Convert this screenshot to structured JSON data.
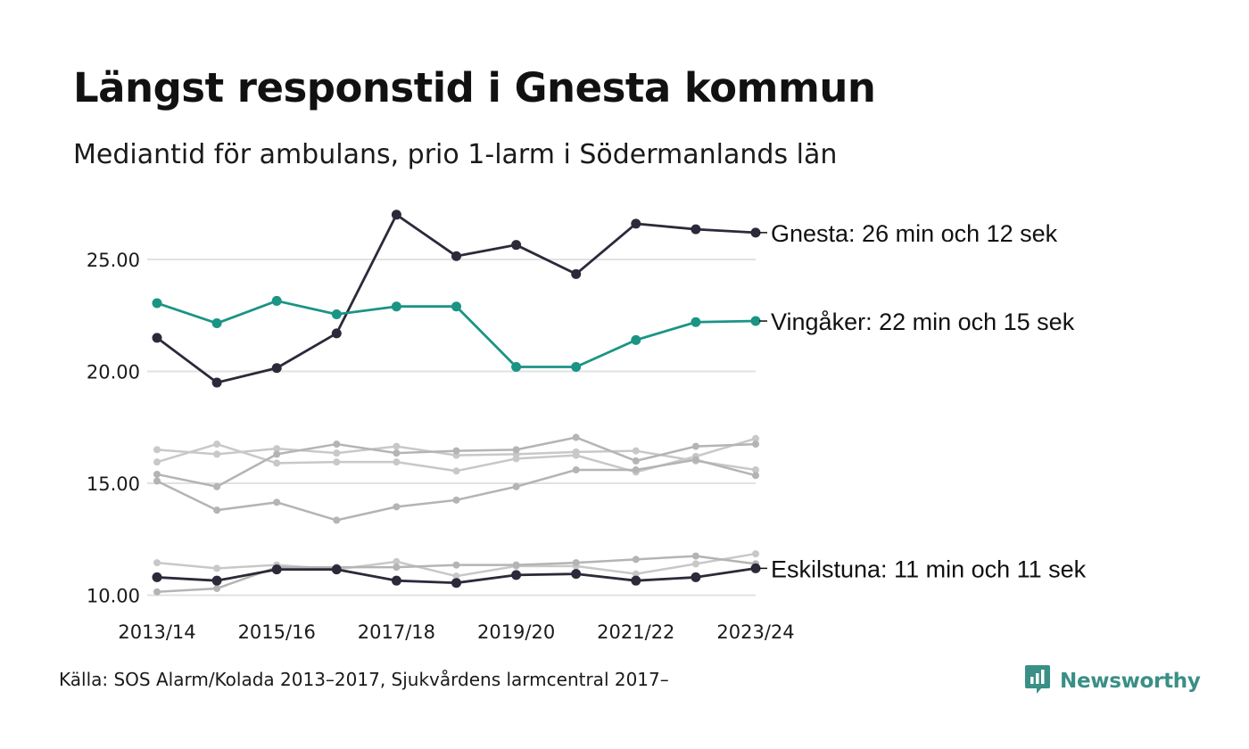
{
  "header": {
    "title": "Längst responstid i Gnesta kommun",
    "subtitle": "Mediantid för ambulans, prio 1-larm i Södermanlands län"
  },
  "footer": {
    "source": "Källa: SOS Alarm/Kolada 2013–2017, Sjukvårdens larmcentral 2017–",
    "brand": "Newsworthy",
    "brand_icon": "bar-chart-chat-icon",
    "brand_color": "#3a8f86"
  },
  "chart_data": {
    "type": "line",
    "title": "Längst responstid i Gnesta kommun",
    "subtitle": "Mediantid för ambulans, prio 1-larm i Södermanlands län",
    "xlabel": "",
    "ylabel": "",
    "x": [
      "2013/14",
      "2014/15",
      "2015/16",
      "2016/17",
      "2017/18",
      "2018/19",
      "2019/20",
      "2020/21",
      "2021/22",
      "2022/23",
      "2023/24"
    ],
    "x_tick_labels": [
      "2013/14",
      "2015/16",
      "2017/18",
      "2019/20",
      "2021/22",
      "2023/24"
    ],
    "y_tick_labels": [
      "10.00",
      "15.00",
      "20.00",
      "25.00"
    ],
    "y_ticks": [
      10,
      15,
      20,
      25
    ],
    "ylim": [
      9.9,
      27.5
    ],
    "grid": "horizontal",
    "legend": "none (direct labels at line ends)",
    "highlight_series": [
      {
        "label": "Gnesta: 26 min och 12 sek",
        "color": "#2b2a3a",
        "values": [
          21.5,
          19.5,
          20.15,
          21.7,
          27.0,
          25.15,
          25.65,
          24.35,
          26.6,
          26.35,
          26.2
        ]
      },
      {
        "label": "Vingåker: 22 min och 15 sek",
        "color": "#1a9485",
        "values": [
          23.05,
          22.15,
          23.15,
          22.55,
          22.9,
          22.9,
          20.2,
          20.2,
          21.4,
          22.2,
          22.25
        ]
      },
      {
        "label": "Eskilstuna: 11 min och 11 sek",
        "color": "#2b2a3a",
        "values": [
          10.8,
          10.65,
          11.15,
          11.15,
          10.65,
          10.55,
          10.9,
          10.95,
          10.65,
          10.8,
          11.2
        ]
      }
    ],
    "background_series": [
      {
        "color": "#c8c8c8",
        "values": [
          16.5,
          16.3,
          16.55,
          16.35,
          16.65,
          16.25,
          16.3,
          16.4,
          16.45,
          16.0,
          15.6
        ]
      },
      {
        "color": "#c8c8c8",
        "values": [
          15.95,
          16.75,
          15.9,
          15.95,
          15.95,
          15.55,
          16.1,
          16.25,
          15.5,
          16.2,
          17.0
        ]
      },
      {
        "color": "#b4b4b4",
        "values": [
          15.4,
          14.85,
          16.3,
          16.75,
          16.35,
          16.45,
          16.5,
          17.05,
          16.0,
          16.65,
          16.75
        ]
      },
      {
        "color": "#b4b4b4",
        "values": [
          15.1,
          13.8,
          14.15,
          13.35,
          13.95,
          14.25,
          14.85,
          15.6,
          15.6,
          16.05,
          15.35
        ]
      },
      {
        "color": "#c8c8c8",
        "values": [
          11.45,
          11.2,
          11.35,
          11.15,
          11.5,
          10.85,
          11.3,
          11.3,
          10.95,
          11.4,
          11.85
        ]
      },
      {
        "color": "#b4b4b4",
        "values": [
          10.15,
          10.3,
          11.25,
          11.25,
          11.25,
          11.35,
          11.35,
          11.45,
          11.6,
          11.75,
          11.4
        ]
      }
    ]
  }
}
